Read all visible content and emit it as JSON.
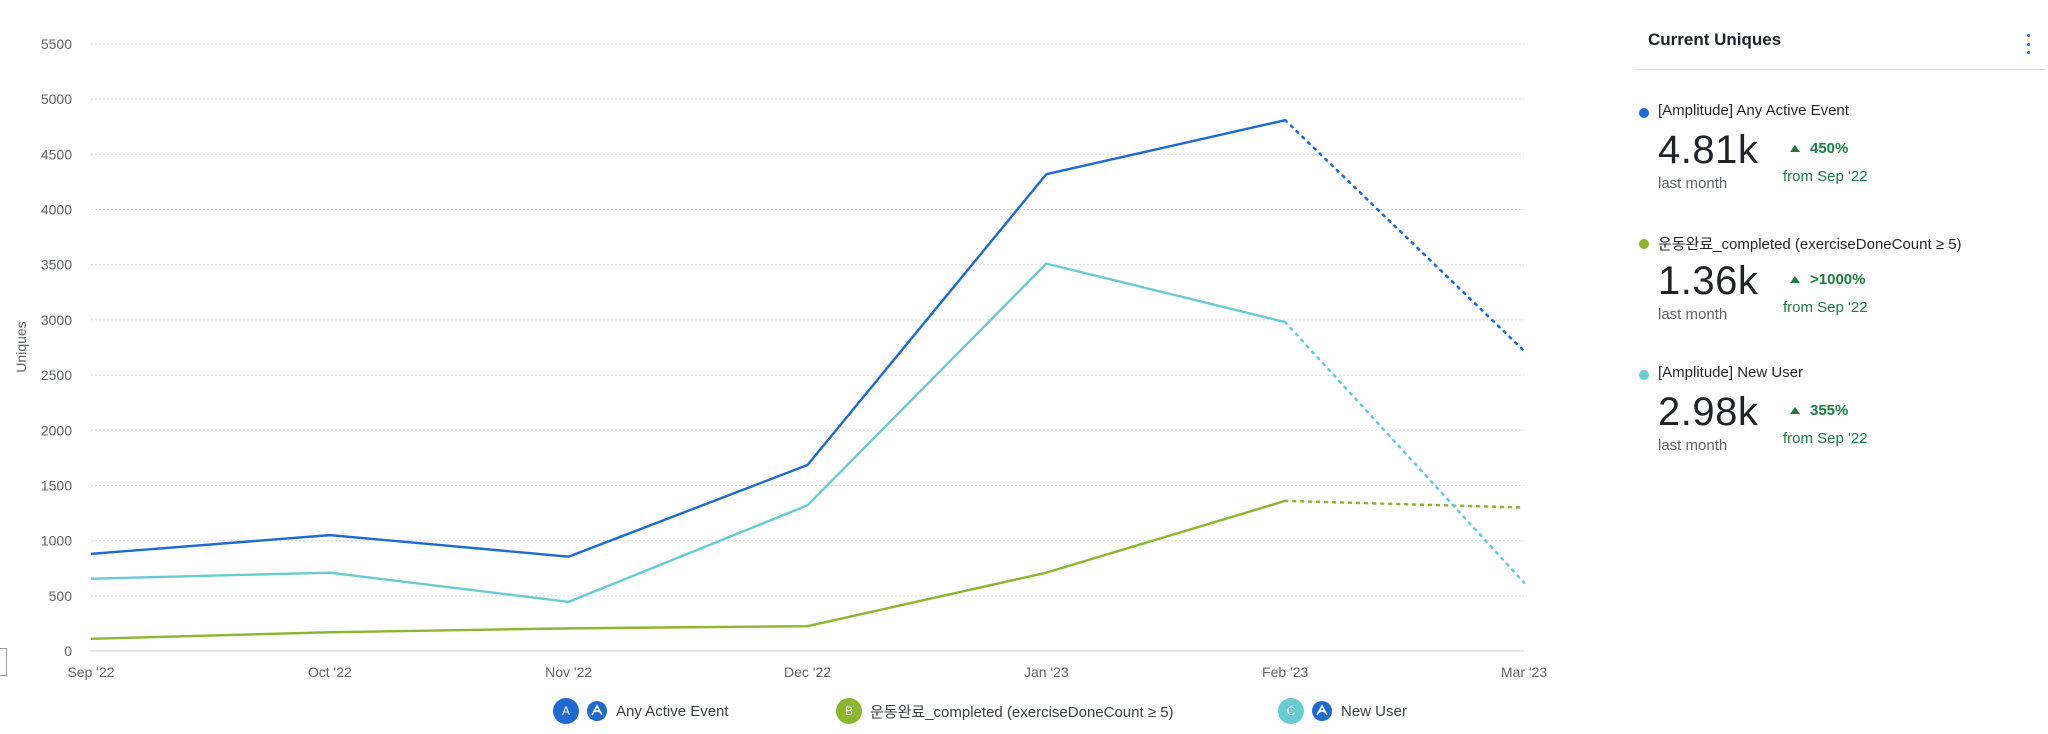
{
  "chart_data": {
    "type": "line",
    "ylabel": "Uniques",
    "xlabel": "",
    "categories": [
      "Sep '22",
      "Oct '22",
      "Nov '22",
      "Dec '22",
      "Jan '23",
      "Feb '23",
      "Mar '23"
    ],
    "yticks": [
      0,
      500,
      1000,
      1500,
      2000,
      2500,
      3000,
      3500,
      4000,
      4500,
      5000,
      5500
    ],
    "ylim": [
      0,
      5500
    ],
    "grid": true,
    "projected_from_index": 5,
    "series": [
      {
        "name": "[Amplitude] Any Active Event",
        "color": "#1f6ad1",
        "values": [
          880,
          1050,
          855,
          1685,
          4320,
          4810,
          2720
        ]
      },
      {
        "name": "운동완료_completed (exerciseDoneCount ≥ 5)",
        "color": "#8db52e",
        "values": [
          110,
          170,
          205,
          225,
          710,
          1360,
          1300
        ]
      },
      {
        "name": "[Amplitude] New User",
        "color": "#67cbd2",
        "values": [
          655,
          710,
          445,
          1320,
          3510,
          2980,
          620
        ]
      }
    ]
  },
  "legend": [
    {
      "badge": "A",
      "label": "Any Active Event",
      "color": "#1f6ad1"
    },
    {
      "badge": "B",
      "label": "운동완료_completed (exerciseDoneCount ≥ 5)",
      "color": "#8db52e"
    },
    {
      "badge": "C",
      "label": "New User",
      "color": "#67cbd2"
    }
  ],
  "panel": {
    "title": "Current Uniques",
    "metrics": [
      {
        "name": "[Amplitude] Any Active Event",
        "value": "4.81k",
        "period": "last month",
        "change": "450%",
        "from": "from Sep '22",
        "color": "#1f6ad1"
      },
      {
        "name": "운동완료_completed (exerciseDoneCount ≥ 5)",
        "value": "1.36k",
        "period": "last month",
        "change": ">1000%",
        "from": "from Sep '22",
        "color": "#8db52e"
      },
      {
        "name": "[Amplitude] New User",
        "value": "2.98k",
        "period": "last month",
        "change": "355%",
        "from": "from Sep '22",
        "color": "#67cbd2"
      }
    ]
  }
}
